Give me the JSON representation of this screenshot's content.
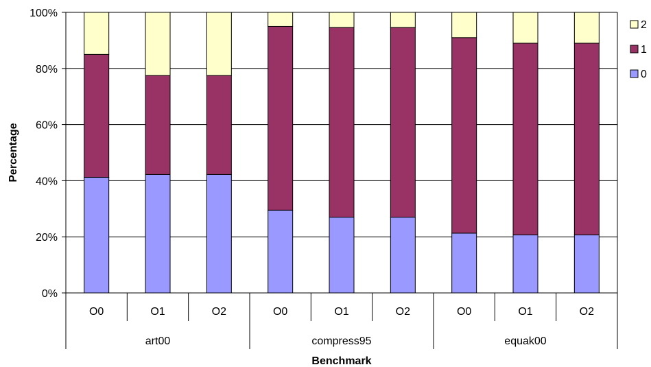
{
  "chart_data": {
    "type": "bar",
    "stacked": true,
    "percent": true,
    "title": "",
    "xlabel": "Benchmark",
    "ylabel": "Percentage",
    "ylim": [
      0,
      100
    ],
    "yticks": [
      "0%",
      "20%",
      "40%",
      "60%",
      "80%",
      "100%"
    ],
    "grid": true,
    "legend_position": "right",
    "categories": [
      "O0",
      "O1",
      "O2",
      "O0",
      "O1",
      "O2",
      "O0",
      "O1",
      "O2"
    ],
    "groups": [
      {
        "label": "art00",
        "categories": [
          "O0",
          "O1",
          "O2"
        ]
      },
      {
        "label": "compress95",
        "categories": [
          "O0",
          "O1",
          "O2"
        ]
      },
      {
        "label": "equak00",
        "categories": [
          "O0",
          "O1",
          "O2"
        ]
      }
    ],
    "series": [
      {
        "name": "0",
        "color": "#9999ff",
        "values": [
          41.2,
          42.2,
          42.2,
          29.5,
          27.0,
          27.0,
          21.3,
          20.7,
          20.7
        ]
      },
      {
        "name": "1",
        "color": "#993366",
        "values": [
          43.8,
          35.3,
          35.3,
          65.5,
          67.6,
          67.6,
          69.7,
          68.3,
          68.3
        ]
      },
      {
        "name": "2",
        "color": "#ffffcc",
        "values": [
          15.0,
          22.5,
          22.5,
          5.0,
          5.4,
          5.4,
          9.0,
          11.0,
          11.0
        ]
      }
    ]
  }
}
